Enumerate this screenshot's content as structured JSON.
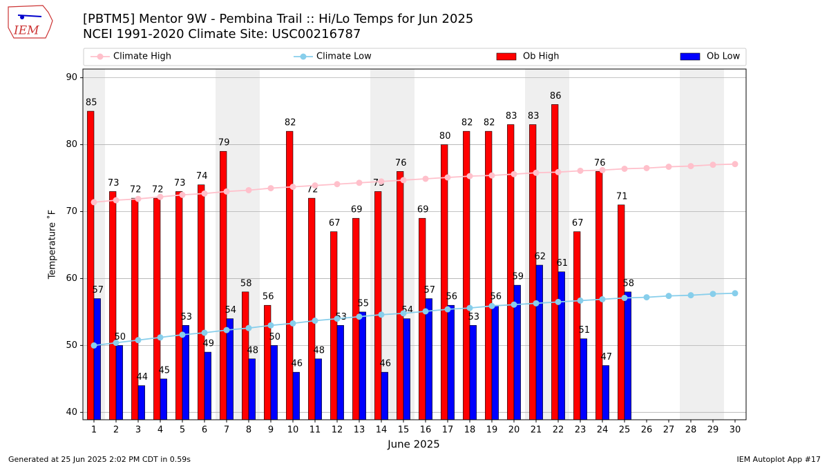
{
  "logo_text": "IEM",
  "footer_left": "Generated at 25 Jun 2025 2:02 PM CDT in 0.59s",
  "footer_right": "IEM Autoplot App #17",
  "chart_data": {
    "type": "bar",
    "title": "[PBTM5] Mentor 9W - Pembina Trail :: Hi/Lo Temps for Jun 2025",
    "subtitle": "NCEI 1991-2020 Climate Site: USC00216787",
    "xlabel": "June 2025",
    "ylabel": "Temperature ˚F",
    "categories": [
      "1",
      "2",
      "3",
      "4",
      "5",
      "6",
      "7",
      "8",
      "9",
      "10",
      "11",
      "12",
      "13",
      "14",
      "15",
      "16",
      "17",
      "18",
      "19",
      "20",
      "21",
      "22",
      "23",
      "24",
      "25",
      "26",
      "27",
      "28",
      "29",
      "30"
    ],
    "series": [
      {
        "name": "Climate High",
        "kind": "line",
        "color": "#ffc0cb",
        "values": [
          71.4,
          71.7,
          71.9,
          72.2,
          72.5,
          72.7,
          73.0,
          73.2,
          73.5,
          73.7,
          73.9,
          74.1,
          74.3,
          74.5,
          74.7,
          74.9,
          75.1,
          75.3,
          75.4,
          75.6,
          75.8,
          75.9,
          76.1,
          76.2,
          76.4,
          76.5,
          76.7,
          76.8,
          77.0,
          77.1
        ]
      },
      {
        "name": "Climate Low",
        "kind": "line",
        "color": "#87ceeb",
        "values": [
          50.0,
          50.4,
          50.8,
          51.2,
          51.6,
          51.9,
          52.3,
          52.6,
          53.0,
          53.3,
          53.7,
          54.0,
          54.3,
          54.6,
          54.8,
          55.1,
          55.4,
          55.6,
          55.9,
          56.1,
          56.3,
          56.5,
          56.7,
          56.9,
          57.1,
          57.2,
          57.4,
          57.5,
          57.7,
          57.8
        ]
      },
      {
        "name": "Ob High",
        "kind": "bar",
        "color": "#ff0000",
        "values": [
          85,
          73,
          72,
          72,
          73,
          74,
          79,
          58,
          56,
          82,
          72,
          67,
          69,
          73,
          76,
          69,
          80,
          82,
          82,
          83,
          83,
          86,
          67,
          76,
          71,
          null,
          null,
          null,
          null,
          null
        ]
      },
      {
        "name": "Ob Low",
        "kind": "bar",
        "color": "#0000ff",
        "values": [
          57,
          50,
          44,
          45,
          53,
          49,
          54,
          48,
          50,
          46,
          48,
          53,
          55,
          46,
          54,
          57,
          56,
          53,
          56,
          59,
          62,
          61,
          51,
          47,
          58,
          null,
          null,
          null,
          null,
          null
        ]
      }
    ],
    "ylim": [
      38.9,
      91.3
    ],
    "yticks": [
      40,
      50,
      60,
      70,
      80,
      90
    ],
    "grid": true,
    "legend": "top"
  }
}
